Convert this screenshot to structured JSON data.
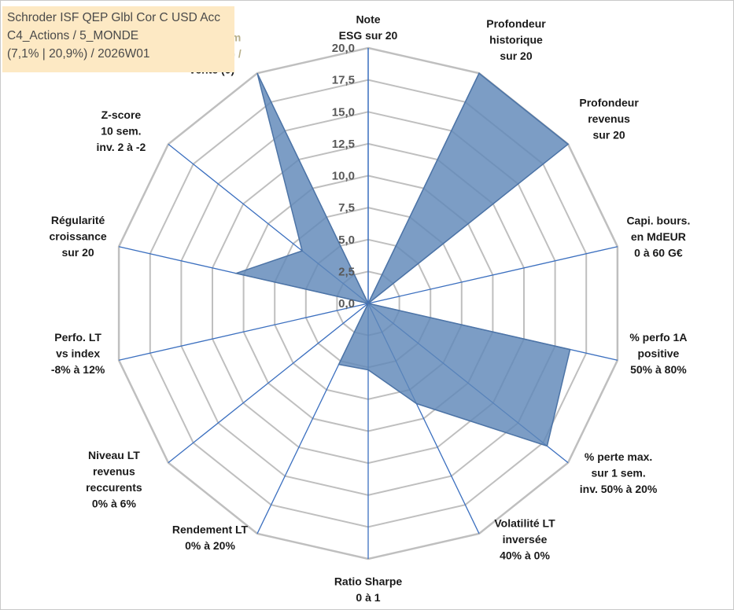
{
  "title_lines": [
    "Schroder ISF QEP Glbl Cor C USD Acc",
    "C4_Actions / 5_MONDE",
    "(7,1% | 20,9%) / 2026W01"
  ],
  "colors": {
    "fill": "#5f88b8",
    "fill_opacity": 0.82,
    "outline": "#4d74a6",
    "spoke": "#3b6fbf",
    "grid": "#bfbfbf",
    "title_bg": "#fde9c4"
  },
  "chart_data": {
    "type": "radar",
    "rmin": 0,
    "rmax": 20,
    "ticks": [
      "0,0",
      "2,5",
      "5,0",
      "7,5",
      "10,0",
      "12,5",
      "15,0",
      "17,5",
      "20,0"
    ],
    "grid_levels": [
      2.5,
      5,
      7.5,
      10,
      12.5,
      15,
      17.5,
      20
    ],
    "grid": true,
    "axes": [
      {
        "label": [
          "Note",
          "ESG sur 20"
        ],
        "value": 0
      },
      {
        "label": [
          "Profondeur",
          "historique",
          "sur 20"
        ],
        "value": 20
      },
      {
        "label": [
          "Profondeur",
          "revenus",
          "sur 20"
        ],
        "value": 20
      },
      {
        "label": [
          "Capi. bours.",
          "en MdEUR",
          "0 à 60 G€"
        ],
        "value": 0
      },
      {
        "label": [
          "% perfo 1A",
          "positive",
          "50% à 80%"
        ],
        "value": 16.2
      },
      {
        "label": [
          "% perte max.",
          "sur 1 sem.",
          "inv. 50% à 20%"
        ],
        "value": 17.9
      },
      {
        "label": [
          "Volatilité LT",
          "inversée",
          "40% à 0%"
        ],
        "value": 8.7
      },
      {
        "label": [
          "Ratio Sharpe",
          "0 à 1"
        ],
        "value": 5.2
      },
      {
        "label": [
          "Rendement LT",
          "0% à 20%"
        ],
        "value": 5.3
      },
      {
        "label": [
          "Niveau LT",
          "revenus",
          "reccurents",
          "0% à 6%"
        ],
        "value": 0
      },
      {
        "label": [
          "Perfo. LT",
          "vs index",
          "-8% à 12%"
        ],
        "value": 0
      },
      {
        "label": [
          "Régularité",
          "croissance",
          "sur 20"
        ],
        "value": 10.6
      },
      {
        "label": [
          "Z-score",
          "10 sem.",
          "inv. 2 à -2"
        ],
        "value": 6.6
      },
      {
        "label": [
          "Momentum",
          "Achat (20) /",
          "Vente (0)"
        ],
        "value": 20
      }
    ]
  }
}
